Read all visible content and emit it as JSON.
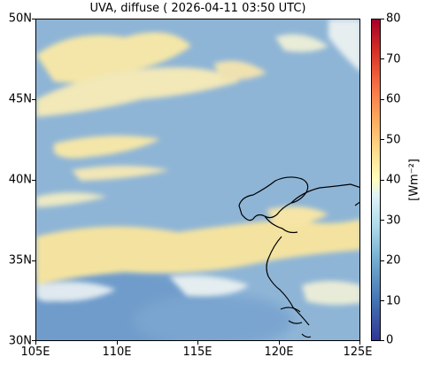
{
  "title": "UVA, diffuse ( 2026-04-11 03:50 UTC)",
  "map": {
    "lon_range": [
      105,
      125
    ],
    "lat_range": [
      30,
      50
    ],
    "x_ticks": [
      "105E",
      "110E",
      "115E",
      "120E",
      "125E"
    ],
    "y_ticks": [
      "50N",
      "45N",
      "40N",
      "35N",
      "30N"
    ],
    "field": "UVA diffuse irradiance",
    "background_color": "#8fb5d6",
    "cloud_color": "#f4e6a8"
  },
  "colorbar": {
    "label": "[Wm⁻²]",
    "ticks": [
      "80",
      "70",
      "60",
      "50",
      "40",
      "30",
      "20",
      "10",
      "0"
    ],
    "range": [
      0,
      80
    ],
    "cmap": "RdYlBu_r"
  }
}
